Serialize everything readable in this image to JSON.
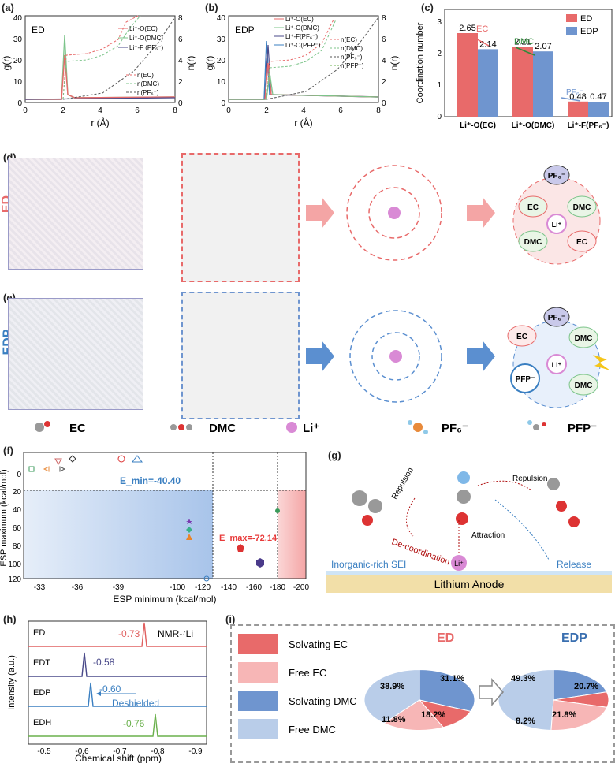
{
  "panels": {
    "a": {
      "label": "(a)",
      "tag": "ED",
      "xlabel": "r (Å)",
      "ylabel": "g(r)",
      "y2label": "n(r)",
      "legend1": [
        "Li⁺-O(EC)",
        "Li⁺-O(DMC)",
        "Li⁺-F (PF₆⁻)"
      ],
      "legend2": [
        "n(EC)",
        "n(DMC)",
        "n(PF₆⁻)"
      ],
      "xticks": [
        "0",
        "2",
        "4",
        "6",
        "8"
      ],
      "yticks": [
        "0",
        "10",
        "20",
        "30",
        "40"
      ],
      "y2ticks": [
        "0",
        "2",
        "4",
        "6",
        "8"
      ]
    },
    "b": {
      "label": "(b)",
      "tag": "EDP",
      "xlabel": "r (Å)",
      "ylabel": "g(r)",
      "y2label": "n(r)",
      "legend1": [
        "Li⁺-O(EC)",
        "Li⁺-O(DMC)",
        "Li⁺-F(PF₆⁻)",
        "Li⁺-O(PFP⁻)"
      ],
      "legend2": [
        "n(EC)",
        "n(DMC)",
        "n(PF₆⁻)",
        "n(PFP⁻)"
      ],
      "xticks": [
        "0",
        "2",
        "4",
        "6",
        "8"
      ],
      "yticks": [
        "0",
        "10",
        "20",
        "30",
        "40"
      ],
      "y2ticks": [
        "0",
        "2",
        "4",
        "6",
        "8"
      ]
    },
    "c": {
      "label": "(c)",
      "ylabel": "Coordination number",
      "legend": [
        "ED",
        "EDP"
      ],
      "arrows": [
        "EC",
        "DMC",
        "PF₆⁻"
      ],
      "yticks": [
        "0",
        "1",
        "2",
        "3"
      ]
    },
    "d": {
      "label": "(d)",
      "side": "ED",
      "cluster": [
        "EC",
        "DMC",
        "DMC",
        "EC"
      ],
      "center": "Li⁺",
      "top": "PF₆⁻"
    },
    "e": {
      "label": "(e)",
      "side": "EDP",
      "cluster": [
        "EC",
        "DMC",
        "PFP⁻",
        "DMC"
      ],
      "center": "Li⁺",
      "top": "PF₆⁻"
    },
    "legendRow": [
      "EC",
      "DMC",
      "Li⁺",
      "PF₆⁻",
      "PFP⁻"
    ],
    "f": {
      "label": "(f)",
      "xlabel": "ESP minimum (kcal/mol)",
      "ylabel": "ESP maximum (kcal/mol)",
      "emin": "E_min=-40.40",
      "emax": "E_max=-72.14",
      "xticks": [
        "-33",
        "-36",
        "-39",
        "-100",
        "-120",
        "-140",
        "-160",
        "-180",
        "-200"
      ],
      "yticks": [
        "0",
        "20",
        "40",
        "60",
        "80",
        "100",
        "120"
      ]
    },
    "g": {
      "label": "(g)",
      "repulsion1": "Repulsion",
      "repulsion2": "Repulsion",
      "decoord": "De-coordination",
      "attraction": "Attraction",
      "sei": "Inorganic-rich SEI",
      "release": "Release",
      "anode": "Lithium Anode",
      "li": "Li⁺"
    },
    "h": {
      "label": "(h)",
      "ylabel": "Intensity (a.u.)",
      "xlabel": "Chemical shift (ppm)",
      "nmr": "NMR-⁷Li",
      "deshield": "Deshielded",
      "rows": [
        {
          "name": "ED",
          "val": "-0.73",
          "color": "#e06060"
        },
        {
          "name": "EDT",
          "val": "-0.58",
          "color": "#4a4a8a"
        },
        {
          "name": "EDP",
          "val": "-0.60",
          "color": "#3a7fc1"
        },
        {
          "name": "EDH",
          "val": "-0.76",
          "color": "#6ab04c"
        }
      ],
      "xticks": [
        "-0.5",
        "-0.6",
        "-0.7",
        "-0.8",
        "-0.9"
      ]
    },
    "i": {
      "label": "(i)",
      "legend": [
        "Solvating EC",
        "Free EC",
        "Solvating DMC",
        "Free DMC"
      ],
      "ed": {
        "title": "ED",
        "vals": [
          "38.9%",
          "31.1%",
          "11.8%",
          "18.2%"
        ]
      },
      "edp": {
        "title": "EDP",
        "vals": [
          "49.3%",
          "20.7%",
          "8.2%",
          "21.8%"
        ]
      }
    }
  },
  "chart_data": [
    {
      "type": "line",
      "panel": "a",
      "series": [
        {
          "name": "Li⁺-O(EC)",
          "peak_x": 2.05,
          "peak_y": 24
        },
        {
          "name": "Li⁺-O(DMC)",
          "peak_x": 2.05,
          "peak_y": 42
        },
        {
          "name": "Li⁺-F (PF₆⁻)",
          "peak_x": 2.05,
          "peak_y": 1
        }
      ],
      "xlim": [
        0,
        8
      ],
      "ylim": [
        0,
        40
      ],
      "y2lim": [
        0,
        8
      ]
    },
    {
      "type": "line",
      "panel": "b",
      "series": [
        {
          "name": "Li⁺-O(EC)",
          "peak_x": 2.05,
          "peak_y": 18
        },
        {
          "name": "Li⁺-O(DMC)",
          "peak_x": 2.1,
          "peak_y": 13
        },
        {
          "name": "Li⁺-F(PF₆⁻)",
          "peak_x": 2.05,
          "peak_y": 26
        },
        {
          "name": "Li⁺-O(PFP⁻)",
          "peak_x": 2.0,
          "peak_y": 28
        }
      ],
      "xlim": [
        0,
        8
      ],
      "ylim": [
        0,
        40
      ],
      "y2lim": [
        0,
        8
      ]
    },
    {
      "type": "bar",
      "panel": "c",
      "categories": [
        "Li⁺-O(EC)",
        "Li⁺-O(DMC)",
        "Li⁺-F(PF₆⁻)"
      ],
      "series": [
        {
          "name": "ED",
          "values": [
            2.65,
            2.21,
            0.48
          ]
        },
        {
          "name": "EDP",
          "values": [
            2.14,
            2.07,
            0.47
          ]
        }
      ],
      "ylabel": "Coordination number",
      "ylim": [
        0,
        3.4
      ]
    },
    {
      "type": "pie",
      "panel": "i-ED",
      "categories": [
        "Free DMC",
        "Solvating DMC",
        "Solvating EC",
        "Free EC"
      ],
      "values": [
        38.9,
        31.1,
        11.8,
        18.2
      ]
    },
    {
      "type": "pie",
      "panel": "i-EDP",
      "categories": [
        "Free DMC",
        "Solvating DMC",
        "Solvating EC",
        "Free EC"
      ],
      "values": [
        49.3,
        20.7,
        8.2,
        21.8
      ]
    }
  ],
  "colors": {
    "red": "#e86a6a",
    "blue": "#6f95cf",
    "pink": "#f7b6b6",
    "lightblue": "#b9cde9",
    "green": "#7cc48a"
  }
}
